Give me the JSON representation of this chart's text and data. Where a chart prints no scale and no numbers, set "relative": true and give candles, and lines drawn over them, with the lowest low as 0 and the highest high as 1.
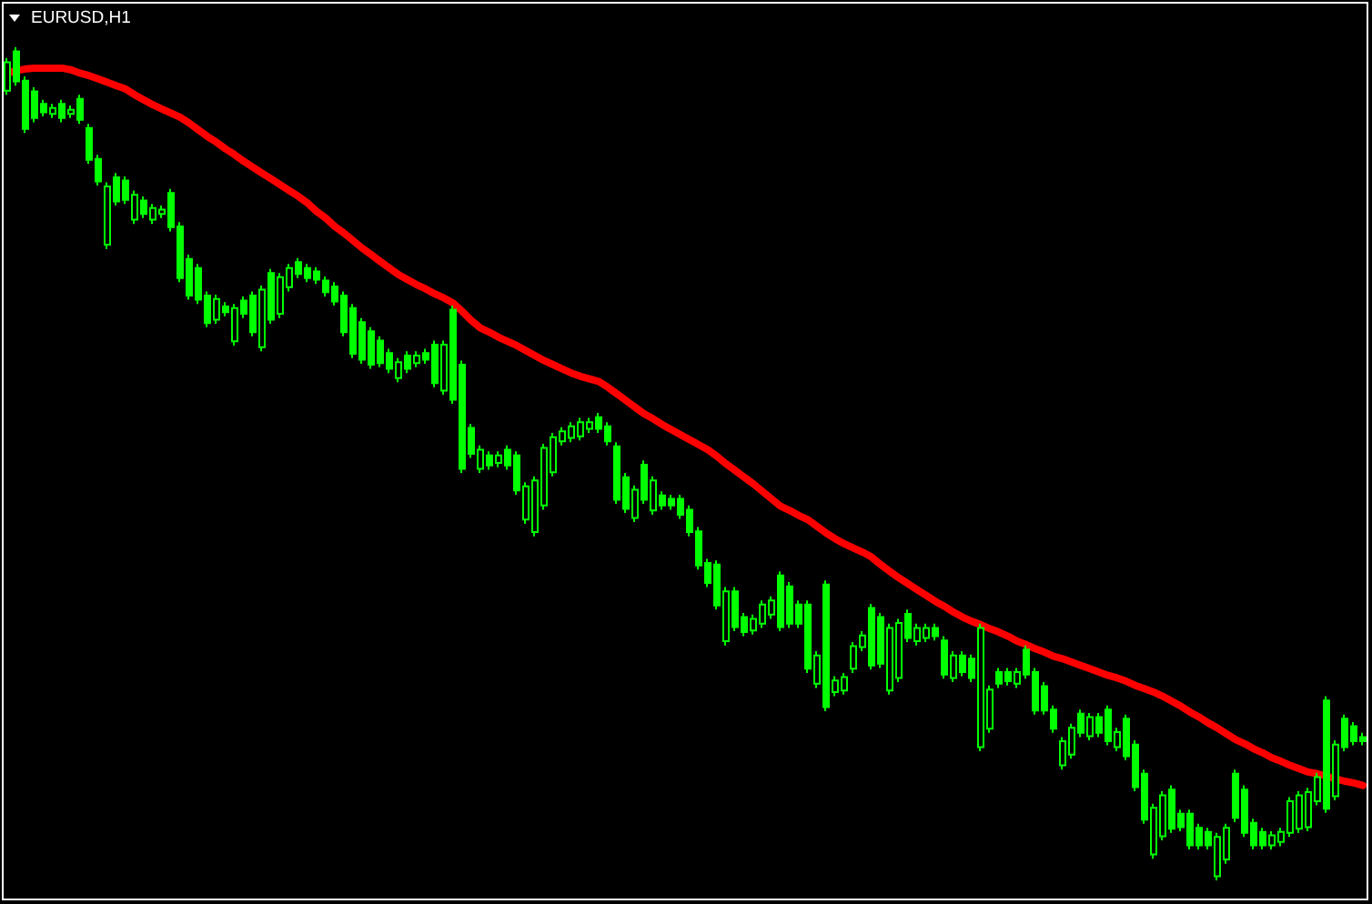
{
  "chart_data": {
    "type": "candlestick",
    "title": "EURUSD,H1",
    "relative": true,
    "line_style": "solid",
    "color": "#00ff00",
    "categories": [
      null,
      null,
      null,
      null,
      null,
      null,
      null,
      null,
      null,
      null,
      null,
      null,
      null,
      null,
      null,
      null,
      null,
      null,
      null,
      null,
      null,
      null,
      null,
      null,
      null,
      null,
      null,
      null,
      null,
      null,
      null,
      null,
      null,
      null,
      null,
      null,
      null,
      null,
      null,
      null,
      null,
      null,
      null,
      null,
      null,
      null,
      null,
      null,
      null,
      null,
      null,
      null,
      null,
      null,
      null,
      null,
      null,
      null,
      null,
      null,
      null,
      null,
      null,
      null,
      null,
      null,
      null,
      null,
      null,
      null,
      null,
      null,
      null,
      null,
      null,
      null,
      null,
      null,
      null,
      null,
      null,
      null,
      null,
      null,
      null,
      null,
      null,
      null,
      null,
      null,
      null,
      null,
      null,
      null,
      null,
      null,
      null,
      null,
      null,
      null,
      null,
      null,
      null,
      null,
      null,
      null,
      null,
      null,
      null,
      null,
      null,
      null,
      null,
      null,
      null,
      null,
      null,
      null,
      null,
      null,
      null,
      null,
      null,
      null,
      null,
      null,
      null,
      null,
      null,
      null,
      null,
      null,
      null,
      null,
      null,
      null,
      null,
      null,
      null,
      null,
      null,
      null,
      null,
      null,
      null,
      null,
      null,
      null,
      null,
      null
    ],
    "ohlc": [
      [
        0.948,
        0.987,
        0.943,
        0.982
      ],
      [
        0.995,
        1.0,
        0.954,
        0.959
      ],
      [
        0.96,
        0.965,
        0.897,
        0.902
      ],
      [
        0.947,
        0.952,
        0.91,
        0.915
      ],
      [
        0.932,
        0.937,
        0.917,
        0.922
      ],
      [
        0.92,
        0.932,
        0.915,
        0.927
      ],
      [
        0.932,
        0.937,
        0.91,
        0.915
      ],
      [
        0.92,
        0.93,
        0.915,
        0.925
      ],
      [
        0.938,
        0.943,
        0.908,
        0.913
      ],
      [
        0.903,
        0.908,
        0.86,
        0.865
      ],
      [
        0.866,
        0.871,
        0.834,
        0.839
      ],
      [
        0.763,
        0.838,
        0.758,
        0.833
      ],
      [
        0.844,
        0.849,
        0.81,
        0.815
      ],
      [
        0.84,
        0.845,
        0.812,
        0.817
      ],
      [
        0.793,
        0.828,
        0.788,
        0.823
      ],
      [
        0.816,
        0.821,
        0.795,
        0.8
      ],
      [
        0.793,
        0.812,
        0.788,
        0.807
      ],
      [
        0.8,
        0.81,
        0.795,
        0.805
      ],
      [
        0.825,
        0.83,
        0.779,
        0.784
      ],
      [
        0.785,
        0.79,
        0.718,
        0.723
      ],
      [
        0.746,
        0.751,
        0.697,
        0.702
      ],
      [
        0.735,
        0.74,
        0.692,
        0.697
      ],
      [
        0.702,
        0.707,
        0.664,
        0.669
      ],
      [
        0.673,
        0.703,
        0.668,
        0.698
      ],
      [
        0.689,
        0.694,
        0.677,
        0.682
      ],
      [
        0.647,
        0.692,
        0.642,
        0.687
      ],
      [
        0.696,
        0.701,
        0.675,
        0.68
      ],
      [
        0.702,
        0.707,
        0.653,
        0.658
      ],
      [
        0.64,
        0.714,
        0.635,
        0.709
      ],
      [
        0.729,
        0.734,
        0.668,
        0.673
      ],
      [
        0.68,
        0.729,
        0.675,
        0.724
      ],
      [
        0.712,
        0.74,
        0.707,
        0.735
      ],
      [
        0.742,
        0.747,
        0.723,
        0.728
      ],
      [
        0.735,
        0.74,
        0.718,
        0.723
      ],
      [
        0.731,
        0.736,
        0.716,
        0.721
      ],
      [
        0.72,
        0.725,
        0.701,
        0.706
      ],
      [
        0.713,
        0.718,
        0.69,
        0.695
      ],
      [
        0.702,
        0.707,
        0.653,
        0.658
      ],
      [
        0.687,
        0.692,
        0.627,
        0.632
      ],
      [
        0.67,
        0.675,
        0.62,
        0.625
      ],
      [
        0.659,
        0.664,
        0.614,
        0.619
      ],
      [
        0.648,
        0.653,
        0.616,
        0.621
      ],
      [
        0.633,
        0.638,
        0.609,
        0.614
      ],
      [
        0.603,
        0.627,
        0.598,
        0.622
      ],
      [
        0.63,
        0.635,
        0.609,
        0.614
      ],
      [
        0.621,
        0.635,
        0.616,
        0.63
      ],
      [
        0.633,
        0.638,
        0.62,
        0.625
      ],
      [
        0.643,
        0.648,
        0.592,
        0.597
      ],
      [
        0.588,
        0.648,
        0.583,
        0.643
      ],
      [
        0.685,
        0.69,
        0.572,
        0.577
      ],
      [
        0.619,
        0.624,
        0.489,
        0.494
      ],
      [
        0.543,
        0.548,
        0.507,
        0.512
      ],
      [
        0.494,
        0.522,
        0.489,
        0.517
      ],
      [
        0.51,
        0.515,
        0.493,
        0.498
      ],
      [
        0.501,
        0.515,
        0.496,
        0.51
      ],
      [
        0.517,
        0.522,
        0.493,
        0.498
      ],
      [
        0.51,
        0.515,
        0.463,
        0.468
      ],
      [
        0.433,
        0.478,
        0.428,
        0.473
      ],
      [
        0.418,
        0.485,
        0.413,
        0.48
      ],
      [
        0.45,
        0.524,
        0.445,
        0.519
      ],
      [
        0.49,
        0.537,
        0.485,
        0.532
      ],
      [
        0.527,
        0.544,
        0.522,
        0.539
      ],
      [
        0.531,
        0.55,
        0.526,
        0.545
      ],
      [
        0.533,
        0.555,
        0.528,
        0.55
      ],
      [
        0.542,
        0.555,
        0.537,
        0.55
      ],
      [
        0.556,
        0.561,
        0.537,
        0.542
      ],
      [
        0.545,
        0.55,
        0.522,
        0.527
      ],
      [
        0.521,
        0.526,
        0.452,
        0.457
      ],
      [
        0.484,
        0.489,
        0.441,
        0.446
      ],
      [
        0.435,
        0.474,
        0.43,
        0.469
      ],
      [
        0.499,
        0.504,
        0.452,
        0.457
      ],
      [
        0.444,
        0.485,
        0.439,
        0.48
      ],
      [
        0.462,
        0.467,
        0.445,
        0.45
      ],
      [
        0.458,
        0.463,
        0.445,
        0.45
      ],
      [
        0.458,
        0.463,
        0.434,
        0.439
      ],
      [
        0.445,
        0.45,
        0.413,
        0.418
      ],
      [
        0.419,
        0.424,
        0.373,
        0.378
      ],
      [
        0.381,
        0.386,
        0.352,
        0.357
      ],
      [
        0.379,
        0.384,
        0.325,
        0.33
      ],
      [
        0.287,
        0.352,
        0.282,
        0.347
      ],
      [
        0.347,
        0.352,
        0.299,
        0.304
      ],
      [
        0.316,
        0.321,
        0.293,
        0.298
      ],
      [
        0.3,
        0.319,
        0.295,
        0.314
      ],
      [
        0.308,
        0.336,
        0.303,
        0.331
      ],
      [
        0.319,
        0.341,
        0.314,
        0.336
      ],
      [
        0.366,
        0.371,
        0.299,
        0.304
      ],
      [
        0.353,
        0.358,
        0.303,
        0.308
      ],
      [
        0.331,
        0.336,
        0.303,
        0.308
      ],
      [
        0.331,
        0.336,
        0.249,
        0.254
      ],
      [
        0.236,
        0.275,
        0.231,
        0.27
      ],
      [
        0.355,
        0.36,
        0.203,
        0.208
      ],
      [
        0.226,
        0.245,
        0.221,
        0.24
      ],
      [
        0.228,
        0.249,
        0.223,
        0.244
      ],
      [
        0.254,
        0.286,
        0.249,
        0.281
      ],
      [
        0.28,
        0.299,
        0.275,
        0.294
      ],
      [
        0.327,
        0.332,
        0.253,
        0.258
      ],
      [
        0.316,
        0.321,
        0.255,
        0.26
      ],
      [
        0.228,
        0.308,
        0.223,
        0.303
      ],
      [
        0.243,
        0.314,
        0.238,
        0.309
      ],
      [
        0.32,
        0.325,
        0.286,
        0.291
      ],
      [
        0.287,
        0.308,
        0.282,
        0.303
      ],
      [
        0.291,
        0.308,
        0.286,
        0.303
      ],
      [
        0.303,
        0.308,
        0.288,
        0.293
      ],
      [
        0.288,
        0.293,
        0.242,
        0.247
      ],
      [
        0.243,
        0.275,
        0.238,
        0.27
      ],
      [
        0.27,
        0.275,
        0.245,
        0.25
      ],
      [
        0.266,
        0.271,
        0.238,
        0.243
      ],
      [
        0.16,
        0.308,
        0.155,
        0.303
      ],
      [
        0.182,
        0.234,
        0.177,
        0.229
      ],
      [
        0.25,
        0.255,
        0.231,
        0.236
      ],
      [
        0.25,
        0.255,
        0.234,
        0.239
      ],
      [
        0.236,
        0.255,
        0.231,
        0.25
      ],
      [
        0.277,
        0.282,
        0.242,
        0.247
      ],
      [
        0.25,
        0.255,
        0.199,
        0.204
      ],
      [
        0.233,
        0.238,
        0.199,
        0.204
      ],
      [
        0.205,
        0.21,
        0.177,
        0.182
      ],
      [
        0.138,
        0.172,
        0.133,
        0.167
      ],
      [
        0.151,
        0.188,
        0.146,
        0.183
      ],
      [
        0.2,
        0.205,
        0.172,
        0.177
      ],
      [
        0.173,
        0.201,
        0.168,
        0.196
      ],
      [
        0.196,
        0.201,
        0.172,
        0.177
      ],
      [
        0.205,
        0.21,
        0.162,
        0.167
      ],
      [
        0.16,
        0.183,
        0.155,
        0.178
      ],
      [
        0.194,
        0.199,
        0.144,
        0.149
      ],
      [
        0.163,
        0.168,
        0.107,
        0.112
      ],
      [
        0.128,
        0.133,
        0.068,
        0.073
      ],
      [
        0.031,
        0.092,
        0.026,
        0.087
      ],
      [
        0.053,
        0.107,
        0.048,
        0.102
      ],
      [
        0.109,
        0.114,
        0.057,
        0.062
      ],
      [
        0.08,
        0.085,
        0.059,
        0.064
      ],
      [
        0.08,
        0.085,
        0.037,
        0.042
      ],
      [
        0.063,
        0.068,
        0.037,
        0.042
      ],
      [
        0.058,
        0.063,
        0.037,
        0.042
      ],
      [
        0.005,
        0.057,
        0.0,
        0.052
      ],
      [
        0.025,
        0.068,
        0.02,
        0.063
      ],
      [
        0.128,
        0.133,
        0.07,
        0.075
      ],
      [
        0.109,
        0.114,
        0.052,
        0.057
      ],
      [
        0.069,
        0.074,
        0.037,
        0.042
      ],
      [
        0.058,
        0.063,
        0.037,
        0.042
      ],
      [
        0.042,
        0.059,
        0.037,
        0.054
      ],
      [
        0.046,
        0.063,
        0.041,
        0.058
      ],
      [
        0.057,
        0.1,
        0.052,
        0.095
      ],
      [
        0.062,
        0.107,
        0.057,
        0.102
      ],
      [
        0.064,
        0.111,
        0.059,
        0.106
      ],
      [
        0.095,
        0.129,
        0.09,
        0.124
      ],
      [
        0.216,
        0.221,
        0.081,
        0.086
      ],
      [
        0.101,
        0.168,
        0.096,
        0.163
      ],
      [
        0.194,
        0.199,
        0.155,
        0.16
      ],
      [
        0.185,
        0.19,
        0.162,
        0.167
      ],
      [
        0.172,
        0.177,
        0.162,
        0.167
      ]
    ],
    "series": [
      {
        "type": "line",
        "color": "#ff0000",
        "values": [
          0.969,
          0.972,
          0.974,
          0.975,
          0.975,
          0.975,
          0.975,
          0.973,
          0.969,
          0.966,
          0.962,
          0.958,
          0.954,
          0.95,
          0.943,
          0.937,
          0.931,
          0.926,
          0.921,
          0.916,
          0.909,
          0.901,
          0.893,
          0.886,
          0.878,
          0.871,
          0.863,
          0.856,
          0.849,
          0.842,
          0.835,
          0.828,
          0.821,
          0.813,
          0.803,
          0.795,
          0.785,
          0.777,
          0.768,
          0.759,
          0.751,
          0.743,
          0.735,
          0.727,
          0.721,
          0.715,
          0.71,
          0.704,
          0.699,
          0.693,
          0.683,
          0.672,
          0.663,
          0.658,
          0.652,
          0.647,
          0.642,
          0.636,
          0.63,
          0.624,
          0.619,
          0.614,
          0.609,
          0.605,
          0.602,
          0.599,
          0.592,
          0.584,
          0.576,
          0.568,
          0.56,
          0.554,
          0.547,
          0.541,
          0.535,
          0.529,
          0.523,
          0.517,
          0.509,
          0.5,
          0.492,
          0.484,
          0.476,
          0.467,
          0.458,
          0.449,
          0.444,
          0.438,
          0.433,
          0.425,
          0.417,
          0.41,
          0.404,
          0.399,
          0.394,
          0.388,
          0.379,
          0.371,
          0.363,
          0.356,
          0.349,
          0.342,
          0.335,
          0.329,
          0.322,
          0.316,
          0.311,
          0.307,
          0.302,
          0.298,
          0.293,
          0.287,
          0.283,
          0.278,
          0.274,
          0.269,
          0.266,
          0.262,
          0.258,
          0.254,
          0.25,
          0.246,
          0.243,
          0.239,
          0.234,
          0.23,
          0.226,
          0.221,
          0.215,
          0.209,
          0.202,
          0.196,
          0.189,
          0.183,
          0.176,
          0.169,
          0.164,
          0.158,
          0.153,
          0.147,
          0.143,
          0.138,
          0.134,
          0.13,
          0.128,
          0.125,
          0.122,
          0.119,
          0.117,
          0.114
        ]
      }
    ]
  }
}
